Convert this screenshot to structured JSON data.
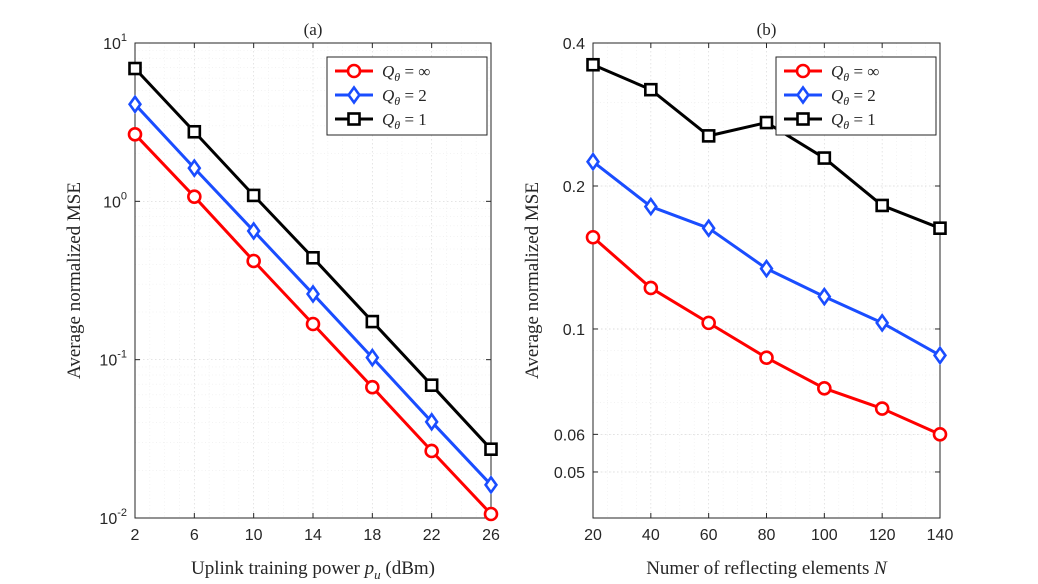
{
  "chart_data": [
    {
      "type": "line",
      "title": "(a)",
      "xlabel": "Uplink training power",
      "xlabel_symbol": "p",
      "xlabel_subscript": "u",
      "xlabel_unit": "(dBm)",
      "ylabel": "Average normalized MSE",
      "yscale": "log",
      "x": [
        2,
        6,
        10,
        14,
        18,
        22,
        26
      ],
      "xlim": [
        2,
        26
      ],
      "ylim": [
        0.01,
        10
      ],
      "xticks": [
        "2",
        "6",
        "10",
        "14",
        "18",
        "22",
        "26"
      ],
      "yticks": [
        {
          "value": 10,
          "base": "10",
          "exp": "1"
        },
        {
          "value": 1,
          "base": "10",
          "exp": "0"
        },
        {
          "value": 0.1,
          "base": "10",
          "exp": "-1"
        },
        {
          "value": 0.01,
          "base": "10",
          "exp": "-2"
        }
      ],
      "legend_position": "top-right",
      "series": [
        {
          "name": "Q_θ = ∞",
          "sym": "Q",
          "sub": "θ",
          "rel": "= ∞",
          "color": "#ff0000",
          "marker": "circle",
          "values": [
            2.65,
            1.07,
            0.42,
            0.168,
            0.067,
            0.0265,
            0.0106
          ]
        },
        {
          "name": "Q_θ = 2",
          "sym": "Q",
          "sub": "θ",
          "rel": "= 2",
          "color": "#1a4dff",
          "marker": "diamond",
          "values": [
            4.1,
            1.62,
            0.65,
            0.26,
            0.103,
            0.0405,
            0.0162
          ]
        },
        {
          "name": "Q_θ = 1",
          "sym": "Q",
          "sub": "θ",
          "rel": "= 1",
          "color": "#000000",
          "marker": "square",
          "values": [
            6.9,
            2.75,
            1.09,
            0.44,
            0.174,
            0.069,
            0.0272
          ]
        }
      ]
    },
    {
      "type": "line",
      "title": "(b)",
      "xlabel": "Numer of reflecting elements",
      "xlabel_symbol": "N",
      "ylabel": "Average normalized MSE",
      "yscale": "log",
      "x": [
        20,
        40,
        60,
        80,
        100,
        120,
        140
      ],
      "xlim": [
        20,
        140
      ],
      "ylim": [
        0.04,
        0.4
      ],
      "xticks": [
        "20",
        "40",
        "60",
        "80",
        "100",
        "120",
        "140"
      ],
      "yticks": [
        {
          "value": 0.4,
          "label": "0.4"
        },
        {
          "value": 0.2,
          "label": "0.2"
        },
        {
          "value": 0.1,
          "label": "0.1"
        },
        {
          "value": 0.06,
          "label": "0.06"
        },
        {
          "value": 0.05,
          "label": "0.05"
        }
      ],
      "legend_position": "top-right",
      "series": [
        {
          "name": "Q_θ = ∞",
          "sym": "Q",
          "sub": "θ",
          "rel": "= ∞",
          "color": "#ff0000",
          "marker": "circle",
          "values": [
            0.156,
            0.122,
            0.103,
            0.087,
            0.075,
            0.068,
            0.06
          ]
        },
        {
          "name": "Q_θ = 2",
          "sym": "Q",
          "sub": "θ",
          "rel": "= 2",
          "color": "#1a4dff",
          "marker": "diamond",
          "values": [
            0.225,
            0.181,
            0.163,
            0.134,
            0.117,
            0.103,
            0.088
          ]
        },
        {
          "name": "Q_θ = 1",
          "sym": "Q",
          "sub": "θ",
          "rel": "= 1",
          "color": "#000000",
          "marker": "square",
          "values": [
            0.36,
            0.319,
            0.255,
            0.272,
            0.229,
            0.182,
            0.163
          ]
        }
      ]
    }
  ]
}
